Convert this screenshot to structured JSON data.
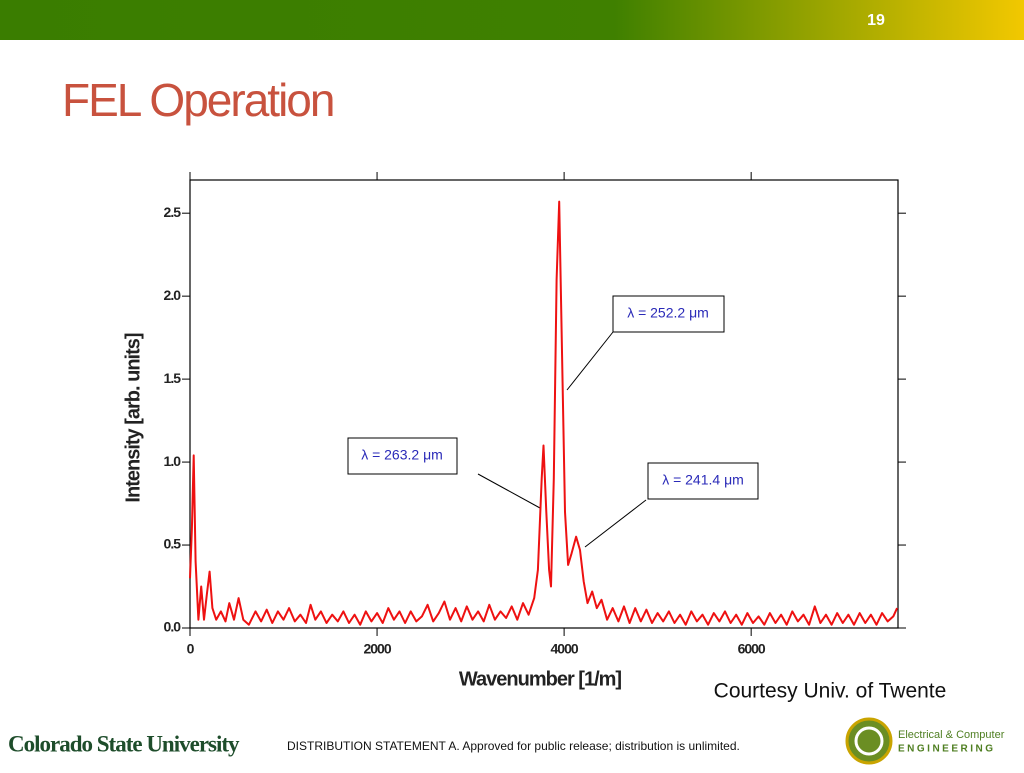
{
  "slide_number": "19",
  "title": "FEL Operation",
  "credit": "Courtesy Univ. of Twente",
  "footer": {
    "university": "Colorado State University",
    "statement": "DISTRIBUTION STATEMENT A. Approved for public release; distribution is unlimited.",
    "dept_line1": "Electrical & Computer",
    "dept_line2": "ENGINEERING"
  },
  "chart_data": {
    "type": "line",
    "xlabel": "Wavenumber [1/m]",
    "ylabel": "Intensity [arb. units]",
    "xlim": [
      0,
      7570
    ],
    "ylim": [
      0,
      2.7
    ],
    "xticks": [
      0,
      2000,
      4000,
      6000
    ],
    "yticks": [
      {
        "value": 0,
        "label": "0.0"
      },
      0.5,
      {
        "value": 1,
        "label": "1.0"
      },
      1.5,
      {
        "value": 2,
        "label": "2.0"
      },
      2.5
    ],
    "annotations": [
      "λ = 252.2 μm",
      "λ = 263.2 μm",
      "λ = 241.4 μm"
    ],
    "x": [
      0,
      20,
      40,
      60,
      90,
      120,
      150,
      180,
      210,
      240,
      280,
      330,
      380,
      420,
      470,
      520,
      570,
      630,
      700,
      760,
      820,
      880,
      940,
      1000,
      1060,
      1120,
      1180,
      1240,
      1290,
      1340,
      1400,
      1460,
      1520,
      1580,
      1640,
      1700,
      1760,
      1820,
      1880,
      1940,
      2000,
      2060,
      2120,
      2180,
      2240,
      2300,
      2360,
      2420,
      2480,
      2540,
      2600,
      2660,
      2720,
      2780,
      2840,
      2900,
      2960,
      3020,
      3080,
      3140,
      3200,
      3260,
      3320,
      3380,
      3440,
      3500,
      3560,
      3620,
      3680,
      3720,
      3760,
      3780,
      3810,
      3840,
      3860,
      3890,
      3920,
      3947,
      3980,
      4010,
      4043,
      4080,
      4128,
      4170,
      4210,
      4250,
      4300,
      4350,
      4400,
      4460,
      4520,
      4580,
      4640,
      4700,
      4760,
      4820,
      4880,
      4940,
      5000,
      5060,
      5120,
      5180,
      5240,
      5300,
      5360,
      5420,
      5480,
      5540,
      5600,
      5660,
      5720,
      5780,
      5840,
      5900,
      5960,
      6020,
      6080,
      6140,
      6200,
      6260,
      6320,
      6380,
      6440,
      6500,
      6560,
      6620,
      6680,
      6740,
      6800,
      6860,
      6920,
      6980,
      7040,
      7100,
      7160,
      7220,
      7280,
      7340,
      7400,
      7460,
      7520,
      7560
    ],
    "series": [
      {
        "color": "#ee1111",
        "values": [
          0.3,
          0.6,
          1.04,
          0.4,
          0.05,
          0.25,
          0.05,
          0.2,
          0.34,
          0.12,
          0.05,
          0.1,
          0.04,
          0.15,
          0.05,
          0.18,
          0.05,
          0.02,
          0.1,
          0.04,
          0.11,
          0.03,
          0.1,
          0.05,
          0.12,
          0.04,
          0.08,
          0.03,
          0.14,
          0.05,
          0.1,
          0.03,
          0.08,
          0.04,
          0.1,
          0.03,
          0.08,
          0.02,
          0.1,
          0.04,
          0.09,
          0.03,
          0.12,
          0.05,
          0.1,
          0.03,
          0.1,
          0.04,
          0.07,
          0.14,
          0.04,
          0.09,
          0.16,
          0.05,
          0.12,
          0.04,
          0.13,
          0.05,
          0.1,
          0.04,
          0.14,
          0.05,
          0.1,
          0.06,
          0.13,
          0.05,
          0.15,
          0.08,
          0.18,
          0.35,
          0.9,
          1.1,
          0.7,
          0.35,
          0.25,
          0.9,
          2.1,
          2.57,
          1.6,
          0.7,
          0.38,
          0.45,
          0.55,
          0.47,
          0.28,
          0.15,
          0.22,
          0.12,
          0.17,
          0.05,
          0.12,
          0.04,
          0.13,
          0.03,
          0.12,
          0.04,
          0.11,
          0.03,
          0.09,
          0.04,
          0.1,
          0.03,
          0.08,
          0.02,
          0.1,
          0.04,
          0.08,
          0.02,
          0.09,
          0.04,
          0.1,
          0.03,
          0.08,
          0.02,
          0.09,
          0.03,
          0.07,
          0.02,
          0.09,
          0.03,
          0.08,
          0.02,
          0.1,
          0.04,
          0.08,
          0.02,
          0.13,
          0.03,
          0.08,
          0.02,
          0.09,
          0.03,
          0.08,
          0.02,
          0.09,
          0.03,
          0.08,
          0.02,
          0.09,
          0.04,
          0.07,
          0.12
        ]
      }
    ]
  }
}
